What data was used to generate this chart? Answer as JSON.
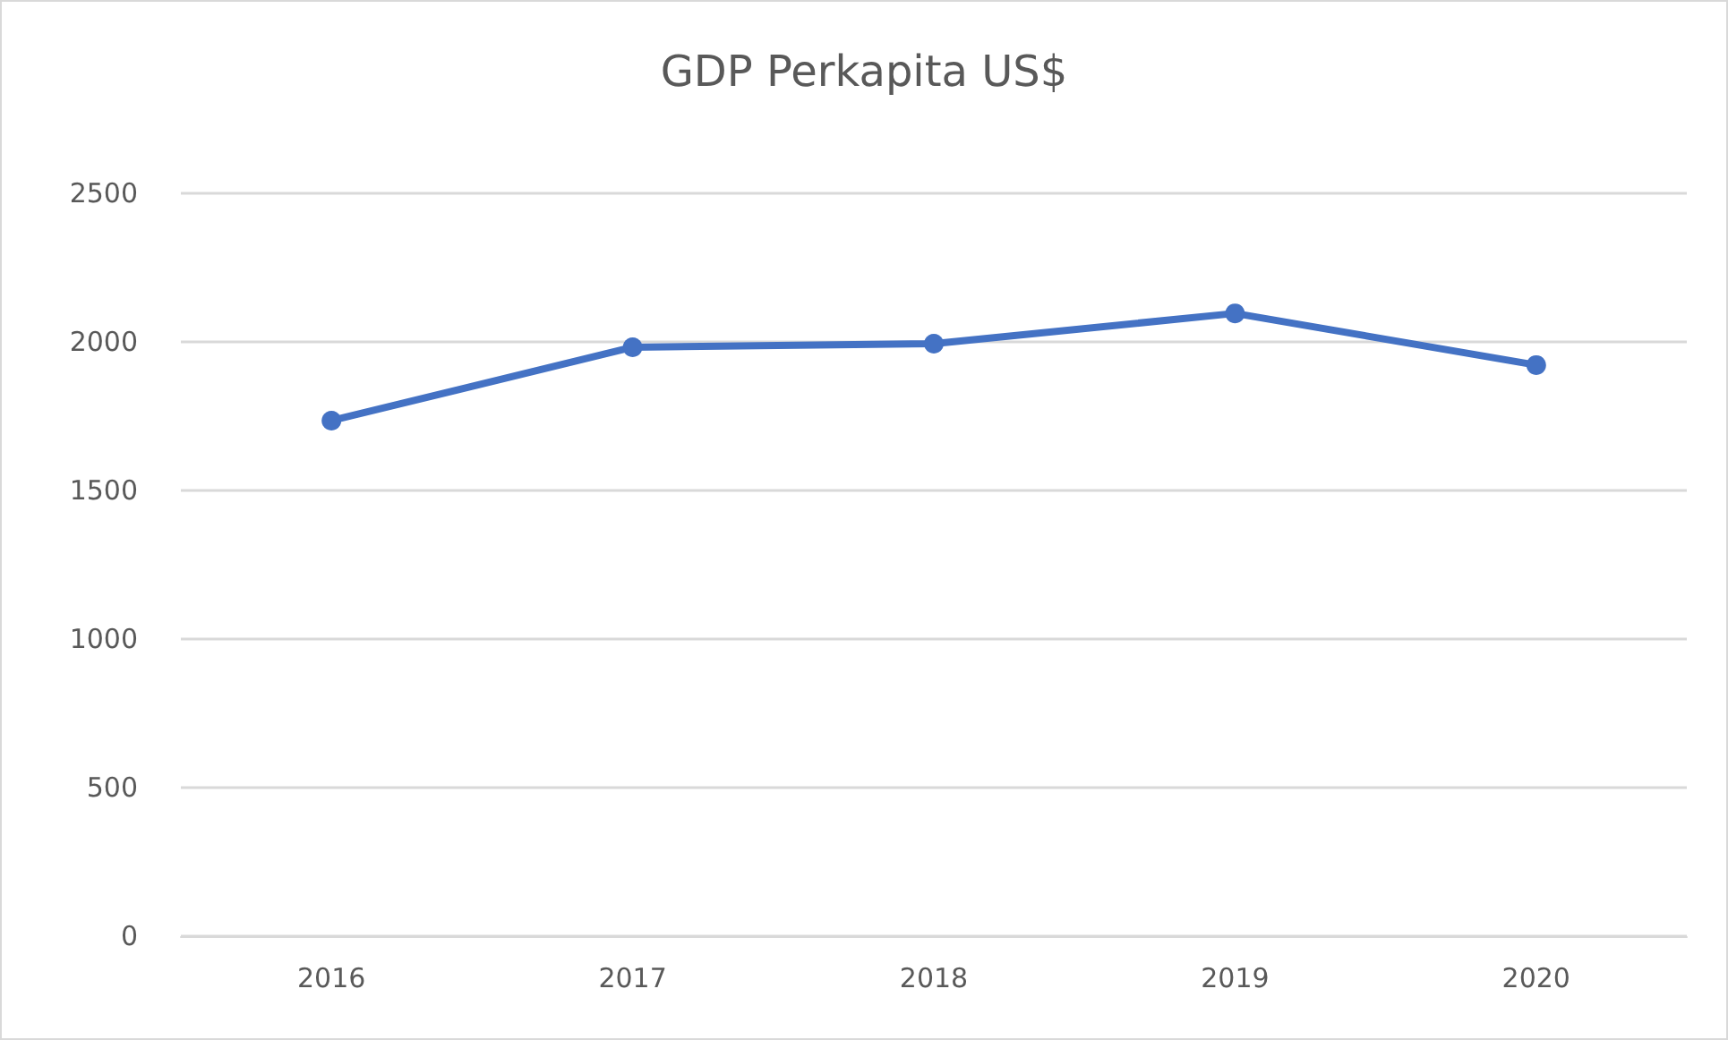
{
  "chart_data": {
    "type": "line",
    "title": "GDP Perkapita US$",
    "categories": [
      "2016",
      "2017",
      "2018",
      "2019",
      "2020"
    ],
    "series": [
      {
        "color": "#4472c4",
        "values": [
          1735,
          1982,
          1994,
          2096,
          1922
        ]
      }
    ],
    "ylim": [
      0,
      2500
    ],
    "yticks": [
      0,
      500,
      1000,
      1500,
      2000,
      2500
    ],
    "grid": "y",
    "marker": "circle",
    "line_style": "solid"
  }
}
